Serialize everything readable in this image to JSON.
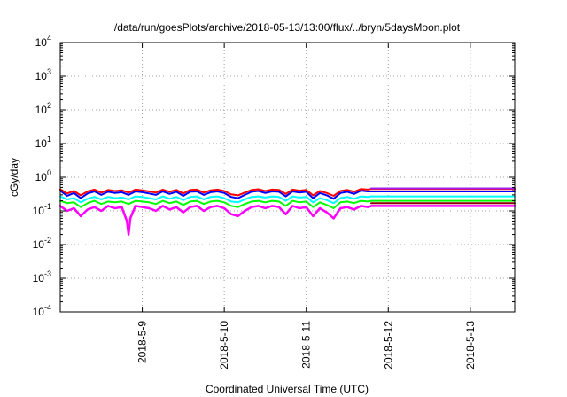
{
  "chart_data": {
    "type": "line",
    "title": "/data/run/goesPlots/archive/2018-05-13/13:00/flux/../bryn/5daysMoon.plot",
    "xlabel": "Coordinated Universal Time (UTC)",
    "ylabel": "cGy/day",
    "yscale": "log",
    "ylim": [
      0.0001,
      10000
    ],
    "xlim": [
      "2018-05-08T00:00",
      "2018-05-13T13:00"
    ],
    "x_ticks": [
      "2018-5-9",
      "2018-5-10",
      "2018-5-11",
      "2018-5-12",
      "2018-5-13"
    ],
    "x_tick_values": [
      "2018-05-09T00:00",
      "2018-05-10T00:00",
      "2018-05-11T00:00",
      "2018-05-12T00:00",
      "2018-05-13T00:00"
    ],
    "y_ticks": [
      {
        "base": "10",
        "exp": "-4",
        "value": 0.0001
      },
      {
        "base": "10",
        "exp": "-3",
        "value": 0.001
      },
      {
        "base": "10",
        "exp": "-2",
        "value": 0.01
      },
      {
        "base": "10",
        "exp": "-1",
        "value": 0.1
      },
      {
        "base": "10",
        "exp": "0",
        "value": 1
      },
      {
        "base": "10",
        "exp": "1",
        "value": 10
      },
      {
        "base": "10",
        "exp": "2",
        "value": 100
      },
      {
        "base": "10",
        "exp": "3",
        "value": 1000
      },
      {
        "base": "10",
        "exp": "4",
        "value": 10000
      }
    ],
    "grid": true,
    "legend": "none",
    "flat_from": "2018-05-11T19:00",
    "series": [
      {
        "color": "#ff00ff",
        "level": 0.14,
        "x": [
          "2018-05-08T00:00",
          "2018-05-08T02:00",
          "2018-05-08T04:00",
          "2018-05-08T06:00",
          "2018-05-08T08:00",
          "2018-05-08T10:00",
          "2018-05-08T12:00",
          "2018-05-08T14:00",
          "2018-05-08T16:00",
          "2018-05-08T18:00",
          "2018-05-08T19:30",
          "2018-05-08T20:00",
          "2018-05-08T20:30",
          "2018-05-08T22:00",
          "2018-05-09T00:00",
          "2018-05-09T02:00",
          "2018-05-09T04:00",
          "2018-05-09T06:00",
          "2018-05-09T08:00",
          "2018-05-09T10:00",
          "2018-05-09T12:00",
          "2018-05-09T14:00",
          "2018-05-09T16:00",
          "2018-05-09T18:00",
          "2018-05-09T20:00",
          "2018-05-09T22:00",
          "2018-05-10T00:00",
          "2018-05-10T02:00",
          "2018-05-10T04:00",
          "2018-05-10T06:00",
          "2018-05-10T08:00",
          "2018-05-10T10:00",
          "2018-05-10T12:00",
          "2018-05-10T14:00",
          "2018-05-10T16:00",
          "2018-05-10T18:00",
          "2018-05-10T20:00",
          "2018-05-10T22:00",
          "2018-05-11T00:00",
          "2018-05-11T02:00",
          "2018-05-11T04:00",
          "2018-05-11T06:00",
          "2018-05-11T08:00",
          "2018-05-11T10:00",
          "2018-05-11T12:00",
          "2018-05-11T14:00",
          "2018-05-11T16:00",
          "2018-05-11T18:00",
          "2018-05-11T19:00",
          "2018-05-13T13:00"
        ],
        "y": [
          0.14,
          0.1,
          0.12,
          0.07,
          0.11,
          0.13,
          0.1,
          0.14,
          0.12,
          0.13,
          0.05,
          0.02,
          0.06,
          0.14,
          0.13,
          0.12,
          0.1,
          0.14,
          0.11,
          0.13,
          0.09,
          0.13,
          0.14,
          0.1,
          0.13,
          0.14,
          0.12,
          0.08,
          0.07,
          0.1,
          0.13,
          0.14,
          0.12,
          0.14,
          0.13,
          0.08,
          0.14,
          0.12,
          0.13,
          0.07,
          0.12,
          0.09,
          0.06,
          0.12,
          0.13,
          0.11,
          0.14,
          0.13,
          0.14,
          0.14
        ]
      },
      {
        "color": "#00ff00",
        "level": 0.2,
        "x": [
          "2018-05-08T00:00",
          "2018-05-08T02:00",
          "2018-05-08T04:00",
          "2018-05-08T06:00",
          "2018-05-08T08:00",
          "2018-05-08T10:00",
          "2018-05-08T12:00",
          "2018-05-08T14:00",
          "2018-05-08T16:00",
          "2018-05-08T18:00",
          "2018-05-08T20:00",
          "2018-05-08T22:00",
          "2018-05-09T00:00",
          "2018-05-09T02:00",
          "2018-05-09T04:00",
          "2018-05-09T06:00",
          "2018-05-09T08:00",
          "2018-05-09T10:00",
          "2018-05-09T12:00",
          "2018-05-09T14:00",
          "2018-05-09T16:00",
          "2018-05-09T18:00",
          "2018-05-09T20:00",
          "2018-05-09T22:00",
          "2018-05-10T00:00",
          "2018-05-10T02:00",
          "2018-05-10T04:00",
          "2018-05-10T06:00",
          "2018-05-10T08:00",
          "2018-05-10T10:00",
          "2018-05-10T12:00",
          "2018-05-10T14:00",
          "2018-05-10T16:00",
          "2018-05-10T18:00",
          "2018-05-10T20:00",
          "2018-05-10T22:00",
          "2018-05-11T00:00",
          "2018-05-11T02:00",
          "2018-05-11T04:00",
          "2018-05-11T06:00",
          "2018-05-11T08:00",
          "2018-05-11T10:00",
          "2018-05-11T12:00",
          "2018-05-11T14:00",
          "2018-05-11T16:00",
          "2018-05-11T18:00",
          "2018-05-11T19:00",
          "2018-05-13T13:00"
        ],
        "y": [
          0.2,
          0.17,
          0.18,
          0.13,
          0.17,
          0.2,
          0.16,
          0.19,
          0.18,
          0.19,
          0.16,
          0.2,
          0.19,
          0.18,
          0.16,
          0.2,
          0.17,
          0.19,
          0.15,
          0.19,
          0.2,
          0.16,
          0.19,
          0.2,
          0.18,
          0.14,
          0.13,
          0.16,
          0.19,
          0.2,
          0.18,
          0.2,
          0.19,
          0.14,
          0.2,
          0.18,
          0.19,
          0.13,
          0.18,
          0.15,
          0.12,
          0.18,
          0.19,
          0.17,
          0.2,
          0.19,
          0.2,
          0.2
        ]
      },
      {
        "color": "#00ffff",
        "level": 0.27,
        "x": [
          "2018-05-08T00:00",
          "2018-05-08T02:00",
          "2018-05-08T04:00",
          "2018-05-08T06:00",
          "2018-05-08T08:00",
          "2018-05-08T10:00",
          "2018-05-08T12:00",
          "2018-05-08T14:00",
          "2018-05-08T16:00",
          "2018-05-08T18:00",
          "2018-05-08T20:00",
          "2018-05-08T22:00",
          "2018-05-09T00:00",
          "2018-05-09T02:00",
          "2018-05-09T04:00",
          "2018-05-09T06:00",
          "2018-05-09T08:00",
          "2018-05-09T10:00",
          "2018-05-09T12:00",
          "2018-05-09T14:00",
          "2018-05-09T16:00",
          "2018-05-09T18:00",
          "2018-05-09T20:00",
          "2018-05-09T22:00",
          "2018-05-10T00:00",
          "2018-05-10T02:00",
          "2018-05-10T04:00",
          "2018-05-10T06:00",
          "2018-05-10T08:00",
          "2018-05-10T10:00",
          "2018-05-10T12:00",
          "2018-05-10T14:00",
          "2018-05-10T16:00",
          "2018-05-10T18:00",
          "2018-05-10T20:00",
          "2018-05-10T22:00",
          "2018-05-11T00:00",
          "2018-05-11T02:00",
          "2018-05-11T04:00",
          "2018-05-11T06:00",
          "2018-05-11T08:00",
          "2018-05-11T10:00",
          "2018-05-11T12:00",
          "2018-05-11T14:00",
          "2018-05-11T16:00",
          "2018-05-11T18:00",
          "2018-05-11T19:00",
          "2018-05-13T13:00"
        ],
        "y": [
          0.27,
          0.22,
          0.24,
          0.18,
          0.23,
          0.26,
          0.22,
          0.26,
          0.24,
          0.25,
          0.22,
          0.27,
          0.26,
          0.24,
          0.22,
          0.27,
          0.23,
          0.26,
          0.21,
          0.26,
          0.27,
          0.22,
          0.26,
          0.27,
          0.24,
          0.19,
          0.18,
          0.22,
          0.26,
          0.27,
          0.25,
          0.27,
          0.26,
          0.2,
          0.27,
          0.25,
          0.26,
          0.18,
          0.24,
          0.21,
          0.17,
          0.24,
          0.26,
          0.23,
          0.27,
          0.26,
          0.27,
          0.27
        ]
      },
      {
        "color": "#0000ff",
        "level": 0.38,
        "x": [
          "2018-05-08T00:00",
          "2018-05-08T02:00",
          "2018-05-08T04:00",
          "2018-05-08T06:00",
          "2018-05-08T08:00",
          "2018-05-08T10:00",
          "2018-05-08T12:00",
          "2018-05-08T14:00",
          "2018-05-08T16:00",
          "2018-05-08T18:00",
          "2018-05-08T20:00",
          "2018-05-08T22:00",
          "2018-05-09T00:00",
          "2018-05-09T02:00",
          "2018-05-09T04:00",
          "2018-05-09T06:00",
          "2018-05-09T08:00",
          "2018-05-09T10:00",
          "2018-05-09T12:00",
          "2018-05-09T14:00",
          "2018-05-09T16:00",
          "2018-05-09T18:00",
          "2018-05-09T20:00",
          "2018-05-09T22:00",
          "2018-05-10T00:00",
          "2018-05-10T02:00",
          "2018-05-10T04:00",
          "2018-05-10T06:00",
          "2018-05-10T08:00",
          "2018-05-10T10:00",
          "2018-05-10T12:00",
          "2018-05-10T14:00",
          "2018-05-10T16:00",
          "2018-05-10T18:00",
          "2018-05-10T20:00",
          "2018-05-10T22:00",
          "2018-05-11T00:00",
          "2018-05-11T02:00",
          "2018-05-11T04:00",
          "2018-05-11T06:00",
          "2018-05-11T08:00",
          "2018-05-11T10:00",
          "2018-05-11T12:00",
          "2018-05-11T14:00",
          "2018-05-11T16:00",
          "2018-05-11T18:00",
          "2018-05-11T19:00",
          "2018-05-13T13:00"
        ],
        "y": [
          0.4,
          0.28,
          0.34,
          0.24,
          0.33,
          0.38,
          0.3,
          0.37,
          0.34,
          0.36,
          0.3,
          0.38,
          0.36,
          0.33,
          0.3,
          0.38,
          0.32,
          0.37,
          0.28,
          0.37,
          0.38,
          0.3,
          0.36,
          0.38,
          0.34,
          0.26,
          0.24,
          0.3,
          0.37,
          0.39,
          0.34,
          0.38,
          0.37,
          0.27,
          0.38,
          0.35,
          0.37,
          0.24,
          0.34,
          0.29,
          0.23,
          0.34,
          0.37,
          0.32,
          0.4,
          0.38,
          0.38,
          0.38
        ]
      },
      {
        "color": "#ff0000",
        "level": 0.45,
        "x": [
          "2018-05-08T00:00",
          "2018-05-08T02:00",
          "2018-05-08T04:00",
          "2018-05-08T06:00",
          "2018-05-08T08:00",
          "2018-05-08T10:00",
          "2018-05-08T12:00",
          "2018-05-08T14:00",
          "2018-05-08T16:00",
          "2018-05-08T18:00",
          "2018-05-08T20:00",
          "2018-05-08T22:00",
          "2018-05-09T00:00",
          "2018-05-09T02:00",
          "2018-05-09T04:00",
          "2018-05-09T06:00",
          "2018-05-09T08:00",
          "2018-05-09T10:00",
          "2018-05-09T12:00",
          "2018-05-09T14:00",
          "2018-05-09T16:00",
          "2018-05-09T18:00",
          "2018-05-09T20:00",
          "2018-05-09T22:00",
          "2018-05-10T00:00",
          "2018-05-10T02:00",
          "2018-05-10T04:00",
          "2018-05-10T06:00",
          "2018-05-10T08:00",
          "2018-05-10T10:00",
          "2018-05-10T12:00",
          "2018-05-10T14:00",
          "2018-05-10T16:00",
          "2018-05-10T18:00",
          "2018-05-10T20:00",
          "2018-05-10T22:00",
          "2018-05-11T00:00",
          "2018-05-11T02:00",
          "2018-05-11T04:00",
          "2018-05-11T06:00",
          "2018-05-11T08:00",
          "2018-05-11T10:00",
          "2018-05-11T12:00",
          "2018-05-11T14:00",
          "2018-05-11T16:00",
          "2018-05-11T18:00",
          "2018-05-11T19:00",
          "2018-05-13T13:00"
        ],
        "y": [
          0.44,
          0.33,
          0.39,
          0.29,
          0.38,
          0.43,
          0.35,
          0.42,
          0.39,
          0.41,
          0.35,
          0.43,
          0.41,
          0.38,
          0.35,
          0.43,
          0.37,
          0.42,
          0.33,
          0.42,
          0.43,
          0.35,
          0.41,
          0.43,
          0.39,
          0.31,
          0.29,
          0.35,
          0.42,
          0.44,
          0.39,
          0.43,
          0.42,
          0.32,
          0.43,
          0.4,
          0.42,
          0.29,
          0.39,
          0.34,
          0.28,
          0.39,
          0.42,
          0.37,
          0.45,
          0.43,
          0.45,
          0.45
        ]
      },
      {
        "color": "#a020f0",
        "level": 0.47,
        "x": [
          "2018-05-11T19:00",
          "2018-05-13T13:00"
        ],
        "y": [
          0.47,
          0.47
        ]
      },
      {
        "color": "#8b0000",
        "level": 0.17,
        "x": [
          "2018-05-11T19:00",
          "2018-05-13T13:00"
        ],
        "y": [
          0.17,
          0.17
        ]
      }
    ]
  }
}
